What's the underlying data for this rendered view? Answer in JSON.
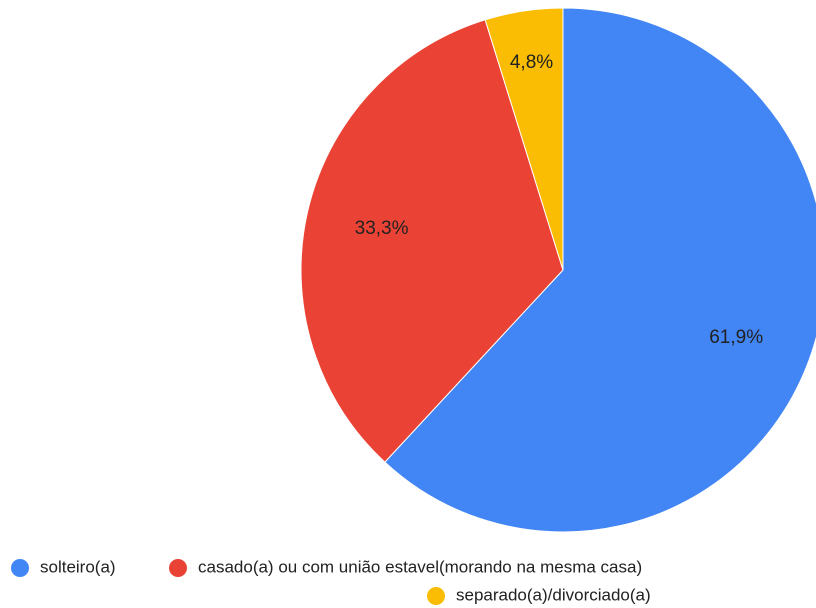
{
  "chart_data": {
    "type": "pie",
    "categories": [
      "solteiro(a)",
      "casado(a) ou com união estavel(morando na mesma casa)",
      "separado(a)/divorciado(a)"
    ],
    "values": [
      61.9,
      33.3,
      4.8
    ],
    "value_labels": [
      "61,9%",
      "33,3%",
      "4,8%"
    ],
    "colors": [
      "#4285f4",
      "#ea4335",
      "#fbbc04"
    ]
  }
}
